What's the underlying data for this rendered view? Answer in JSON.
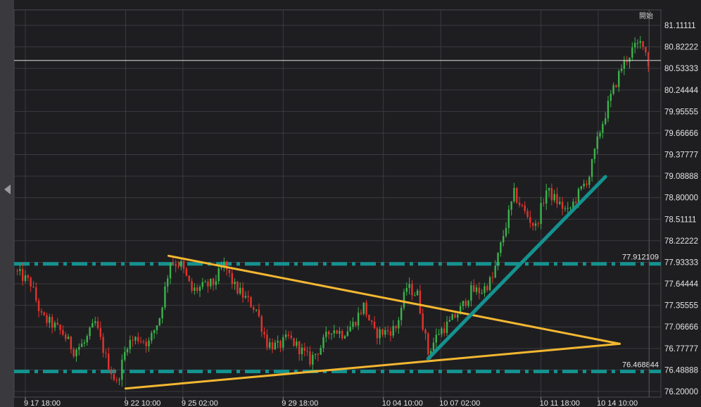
{
  "chart_data": {
    "type": "candlestick",
    "title": "",
    "top_label": "開始",
    "y_ticks": [
      "81.11111",
      "80.82222",
      "80.53333",
      "80.24444",
      "79.95555",
      "79.66666",
      "79.37777",
      "79.08888",
      "78.80000",
      "78.51111",
      "78.22222",
      "77.93333",
      "77.64444",
      "77.35555",
      "77.06666",
      "76.77777",
      "76.48888",
      "76.20000"
    ],
    "ylim": [
      76.2,
      81.11111
    ],
    "x_ticks": [
      "9 17 18:00",
      "9 22 10:00",
      "9 25 02:00",
      "9 29 18:00",
      "10 04 10:00",
      "10 07 02:00",
      "10 11 18:00",
      "10 14 10:00"
    ],
    "current_price": 80.64,
    "levels": [
      {
        "label": "77.912109",
        "value": 77.912109
      },
      {
        "label": "76.468844",
        "value": 76.468844
      }
    ],
    "trendlines": [
      {
        "name": "triangle-upper",
        "color": "#f4b731",
        "from": {
          "x": "9 24 10:00",
          "y": 78.02
        },
        "to": {
          "x": "10 15 10:00",
          "y": 76.84
        }
      },
      {
        "name": "triangle-lower",
        "color": "#f4b731",
        "from": {
          "x": "9 22 10:00",
          "y": 76.24
        },
        "to": {
          "x": "10 15 10:00",
          "y": 76.84
        }
      },
      {
        "name": "uptrend",
        "color": "#14928f",
        "from": {
          "x": "10 06 12:00",
          "y": 76.64
        },
        "to": {
          "x": "10 14 18:00",
          "y": 79.08
        }
      }
    ],
    "colors": {
      "up": "#3bb34a",
      "down": "#e2342d",
      "background": "#1e1e21"
    },
    "price_path": [
      [
        "9 17 06:00",
        77.82
      ],
      [
        "9 18 00:00",
        77.65
      ],
      [
        "9 18 12:00",
        77.2
      ],
      [
        "9 19 00:00",
        77.1
      ],
      [
        "9 19 12:00",
        76.98
      ],
      [
        "9 20 00:00",
        76.75
      ],
      [
        "9 20 12:00",
        76.85
      ],
      [
        "9 21 00:00",
        77.12
      ],
      [
        "9 21 12:00",
        76.65
      ],
      [
        "9 22 00:00",
        76.3
      ],
      [
        "9 22 12:00",
        76.85
      ],
      [
        "9 23 00:00",
        76.92
      ],
      [
        "9 23 12:00",
        76.85
      ],
      [
        "9 24 00:00",
        77.2
      ],
      [
        "9 24 12:00",
        77.95
      ],
      [
        "9 25 00:00",
        77.9
      ],
      [
        "9 25 12:00",
        77.55
      ],
      [
        "9 26 00:00",
        77.6
      ],
      [
        "9 26 12:00",
        77.65
      ],
      [
        "9 27 00:00",
        77.9
      ],
      [
        "9 27 12:00",
        77.6
      ],
      [
        "9 28 00:00",
        77.45
      ],
      [
        "9 28 12:00",
        77.3
      ],
      [
        "9 29 00:00",
        76.85
      ],
      [
        "9 29 12:00",
        76.8
      ],
      [
        "9 30 00:00",
        76.92
      ],
      [
        "9 30 12:00",
        76.78
      ],
      [
        "10 01 00:00",
        76.62
      ],
      [
        "10 01 12:00",
        76.8
      ],
      [
        "10 02 00:00",
        77.05
      ],
      [
        "10 02 12:00",
        76.98
      ],
      [
        "10 03 00:00",
        77.1
      ],
      [
        "10 03 12:00",
        77.35
      ],
      [
        "10 04 00:00",
        76.98
      ],
      [
        "10 04 12:00",
        77.0
      ],
      [
        "10 05 00:00",
        77.05
      ],
      [
        "10 05 12:00",
        77.6
      ],
      [
        "10 06 00:00",
        77.5
      ],
      [
        "10 06 12:00",
        76.72
      ],
      [
        "10 07 00:00",
        77.0
      ],
      [
        "10 07 12:00",
        77.12
      ],
      [
        "10 08 00:00",
        77.3
      ],
      [
        "10 08 12:00",
        77.55
      ],
      [
        "10 09 00:00",
        77.55
      ],
      [
        "10 09 12:00",
        77.72
      ],
      [
        "10 10 00:00",
        78.3
      ],
      [
        "10 10 12:00",
        78.85
      ],
      [
        "10 11 00:00",
        78.6
      ],
      [
        "10 11 12:00",
        78.4
      ],
      [
        "10 12 00:00",
        78.9
      ],
      [
        "10 12 12:00",
        78.75
      ],
      [
        "10 13 00:00",
        78.6
      ],
      [
        "10 13 12:00",
        78.85
      ],
      [
        "10 14 00:00",
        79.1
      ],
      [
        "10 14 12:00",
        79.7
      ],
      [
        "10 15 00:00",
        80.15
      ],
      [
        "10 15 12:00",
        80.55
      ],
      [
        "10 16 00:00",
        80.78
      ],
      [
        "10 16 12:00",
        80.9
      ],
      [
        "10 16 18:00",
        80.6
      ]
    ]
  }
}
